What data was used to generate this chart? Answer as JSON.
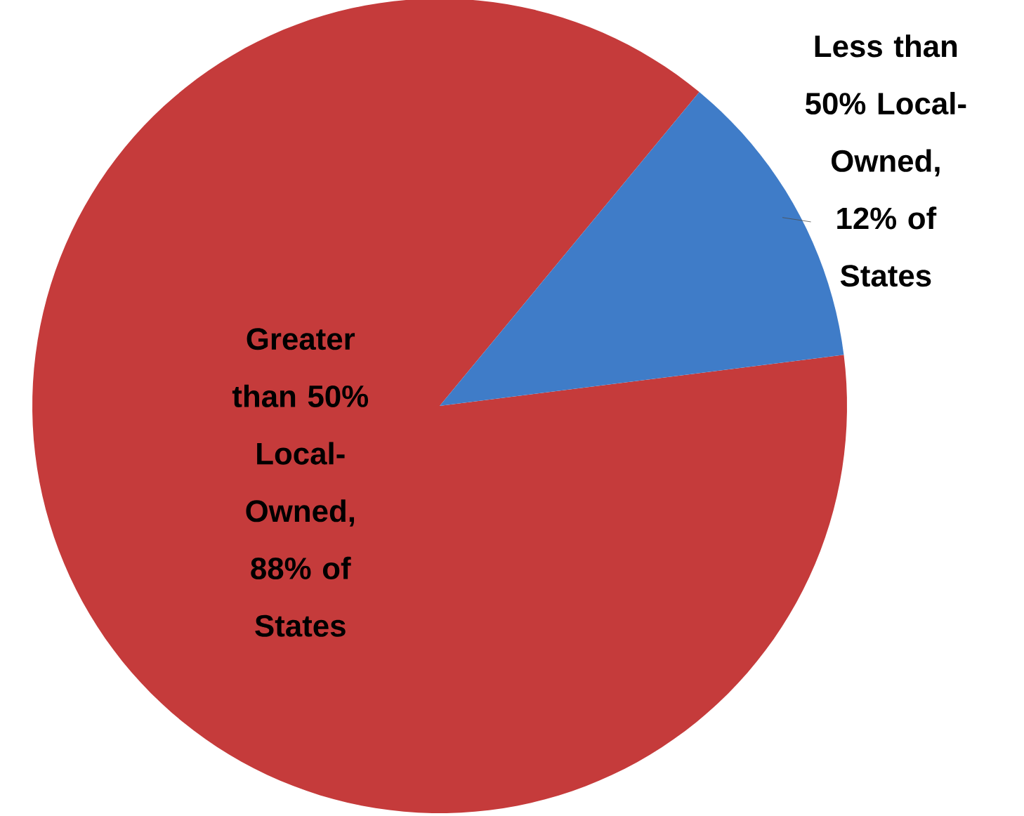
{
  "chart_data": {
    "type": "pie",
    "categories": [
      "Greater than 50% Local-Owned, 88% of States",
      "Less than 50% Local-Owned, 12% of States"
    ],
    "values": [
      88,
      12
    ],
    "colors": [
      "#c53b3b",
      "#3f7cc8"
    ]
  }
}
